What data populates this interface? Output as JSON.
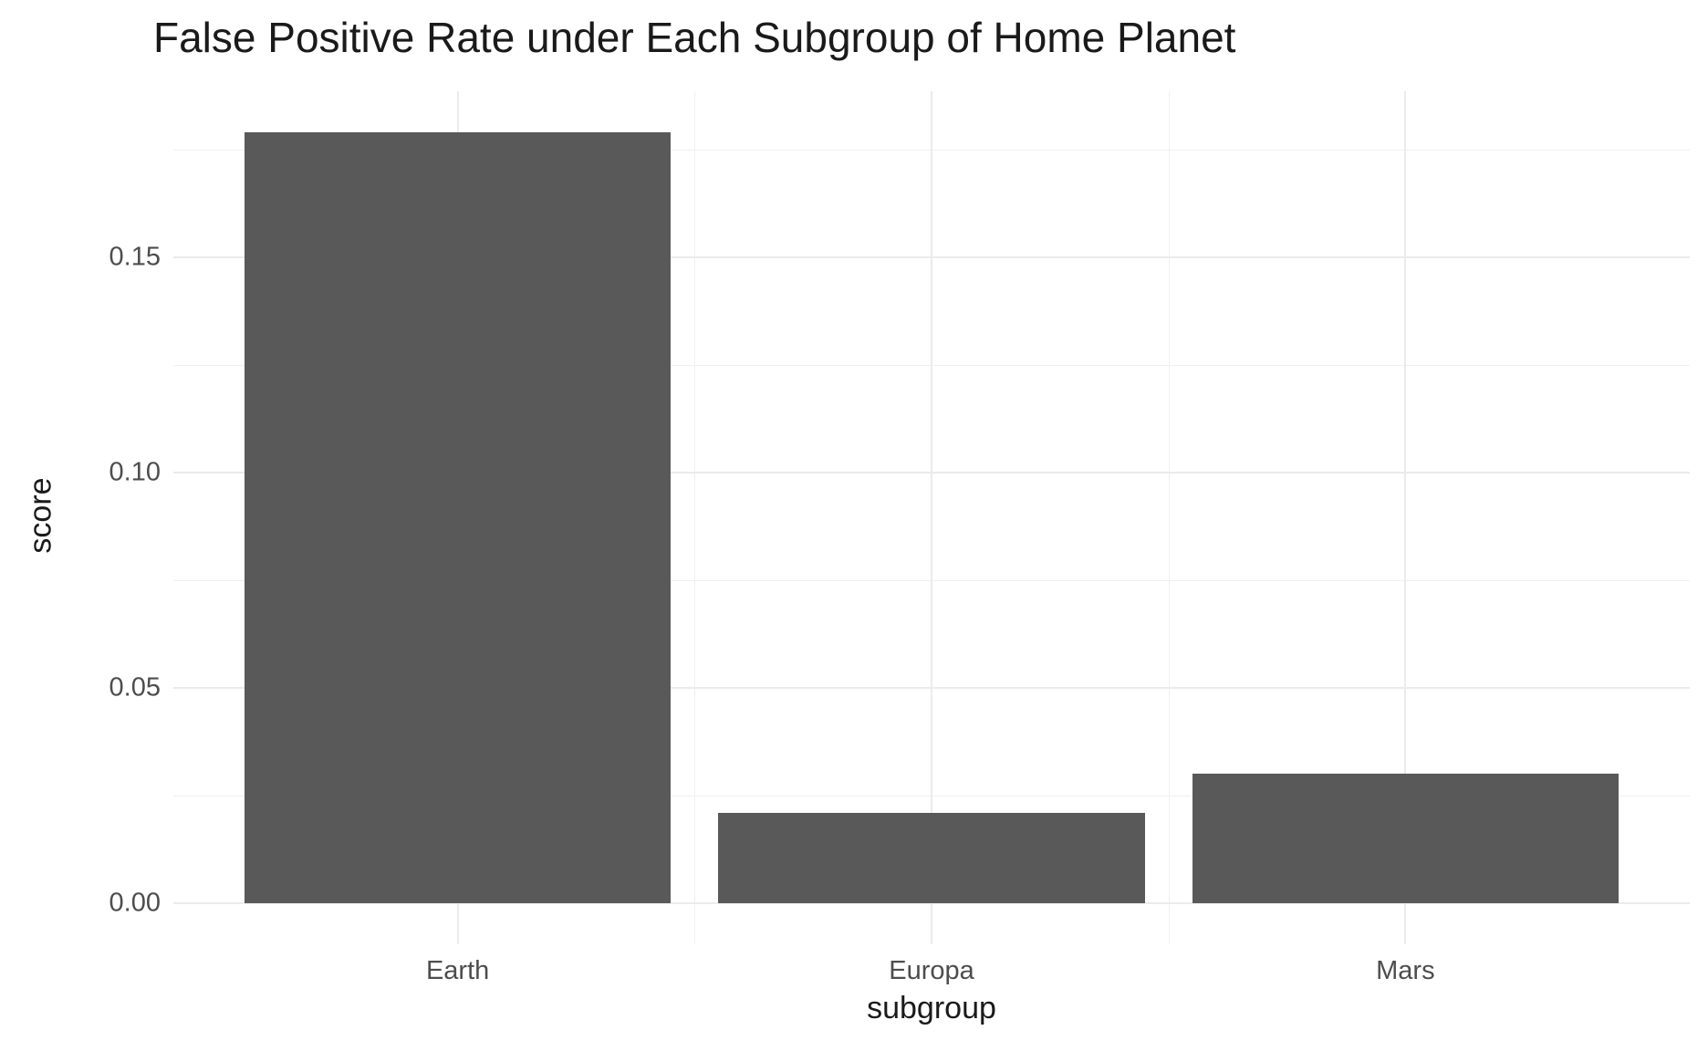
{
  "title": "False Positive Rate under Each Subgroup of Home Planet",
  "chart_data": {
    "type": "bar",
    "title": "False Positive Rate under Each Subgroup of Home Planet",
    "xlabel": "subgroup",
    "ylabel": "score",
    "categories": [
      "Earth",
      "Europa",
      "Mars"
    ],
    "values": [
      0.179,
      0.021,
      0.03
    ],
    "ylim": [
      0,
      0.1875
    ],
    "yticks": [
      0,
      0.05,
      0.1,
      0.15
    ],
    "ytick_labels": [
      "0.00",
      "0.05",
      "0.10",
      "0.15"
    ],
    "yminor_ticks": [
      0.025,
      0.075,
      0.125,
      0.175
    ],
    "legend": "none",
    "grid": true,
    "bar_color": "#595959",
    "major_grid_color": "#ebebeb",
    "minor_grid_color": "#f0f0f0",
    "tick_label_color": "#4d4d4d",
    "background_color": "#ffffff"
  }
}
